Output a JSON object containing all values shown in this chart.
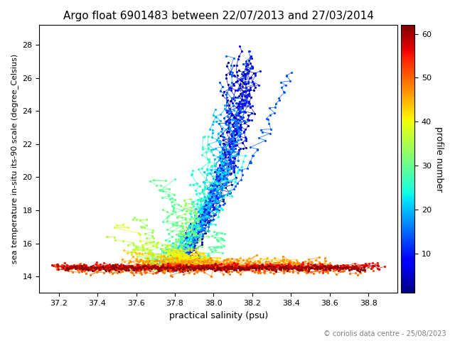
{
  "title": "Argo float 6901483 between 22/07/2013 and 27/03/2014",
  "xlabel": "practical salinity (psu)",
  "ylabel": "sea temperature in-situ its-90 scale (degree_Celsius)",
  "colorbar_label": "profile number",
  "copyright": "© coriolis data centre - 25/08/2023",
  "xlim": [
    37.1,
    38.95
  ],
  "ylim": [
    13.0,
    29.2
  ],
  "xticks": [
    37.2,
    37.4,
    37.6,
    37.8,
    38.0,
    38.2,
    38.4,
    38.6,
    38.8
  ],
  "yticks": [
    14,
    16,
    18,
    20,
    22,
    24,
    26,
    28
  ],
  "colormap": "jet",
  "vmin": 1,
  "vmax": 62,
  "colorbar_ticks": [
    10,
    20,
    30,
    40,
    50,
    60
  ],
  "n_profiles": 62,
  "figsize": [
    6.4,
    4.8
  ],
  "dpi": 100
}
